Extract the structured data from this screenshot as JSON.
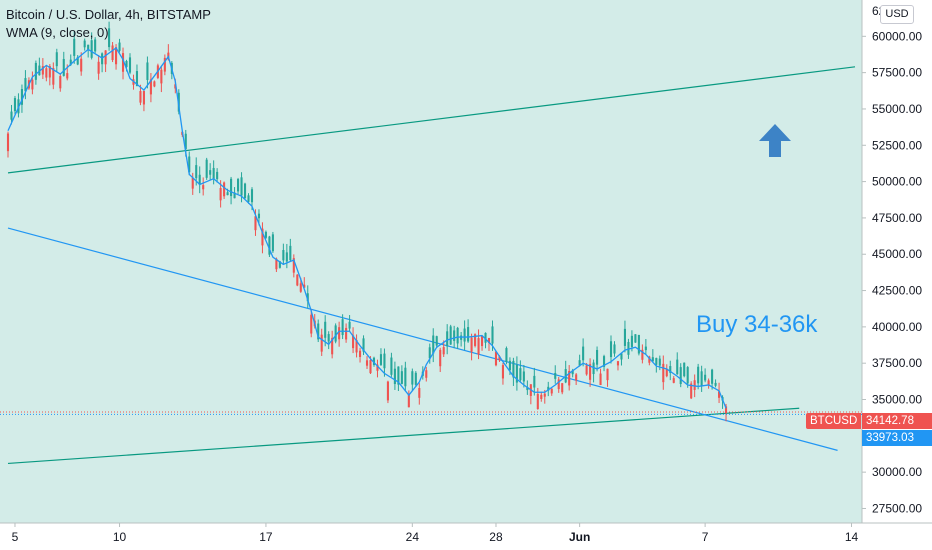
{
  "legend": {
    "symbol_line": "Bitcoin / U.S. Dollar, 4h, BITSTAMP",
    "indicator_line": "WMA (9, close, 0)"
  },
  "currency_button": "USD",
  "annotation": "Buy 34-36k",
  "price_tags": {
    "symbol": "BTCUSD",
    "last_price": "34142.78",
    "wma_value": "33973.03"
  },
  "colors": {
    "background": "#d3ece8",
    "up": "#26a69a",
    "down": "#ef5350",
    "wma": "#2196f3",
    "trendline_blue": "#2196f3",
    "channel_green": "#089981",
    "arrow": "#3d83c6"
  },
  "chart_data": {
    "type": "candlestick",
    "title": "Bitcoin / U.S. Dollar, 4h, BITSTAMP",
    "ylim": [
      26500,
      62500
    ],
    "y_ticks": [
      27500,
      30000,
      32500,
      35000,
      37500,
      40000,
      42500,
      45000,
      47500,
      50000,
      52500,
      55000,
      57500,
      60000
    ],
    "y_tick_labels": [
      "27500.00",
      "30000.00",
      "32500.00",
      "35000.00",
      "37500.00",
      "40000.00",
      "42500.00",
      "45000.00",
      "47500.00",
      "50000.00",
      "52500.00",
      "55000.00",
      "57500.00",
      "60000.00"
    ],
    "y_top_partial_label": "62",
    "x_tick_labels": [
      {
        "label": "5",
        "bar": 3
      },
      {
        "label": "10",
        "bar": 33
      },
      {
        "label": "17",
        "bar": 75
      },
      {
        "label": "24",
        "bar": 117
      },
      {
        "label": "28",
        "bar": 141
      },
      {
        "label": "Jun",
        "bar": 165
      },
      {
        "label": "7",
        "bar": 201
      },
      {
        "label": "14",
        "bar": 243
      }
    ],
    "x_range": [
      1,
      244
    ],
    "series": [
      {
        "name": "WMA (9, close, 0)",
        "kind": "line",
        "points": [
          [
            1,
            53500
          ],
          [
            4,
            55100
          ],
          [
            8,
            57200
          ],
          [
            12,
            58000
          ],
          [
            16,
            57400
          ],
          [
            20,
            58300
          ],
          [
            24,
            59100
          ],
          [
            28,
            58500
          ],
          [
            32,
            59200
          ],
          [
            34,
            58400
          ],
          [
            36,
            57100
          ],
          [
            40,
            56300
          ],
          [
            44,
            57600
          ],
          [
            47,
            58600
          ],
          [
            49,
            56900
          ],
          [
            51,
            53500
          ],
          [
            53,
            50500
          ],
          [
            56,
            49800
          ],
          [
            60,
            50200
          ],
          [
            64,
            49400
          ],
          [
            68,
            49000
          ],
          [
            71,
            48300
          ],
          [
            74,
            46500
          ],
          [
            77,
            44800
          ],
          [
            80,
            44300
          ],
          [
            83,
            44600
          ],
          [
            86,
            42600
          ],
          [
            88,
            41100
          ],
          [
            90,
            39300
          ],
          [
            93,
            38800
          ],
          [
            96,
            39700
          ],
          [
            99,
            39700
          ],
          [
            102,
            38700
          ],
          [
            105,
            37800
          ],
          [
            109,
            36800
          ],
          [
            113,
            36200
          ],
          [
            116,
            35300
          ],
          [
            119,
            36200
          ],
          [
            121,
            37400
          ],
          [
            124,
            38600
          ],
          [
            127,
            39100
          ],
          [
            130,
            39300
          ],
          [
            133,
            39300
          ],
          [
            137,
            39400
          ],
          [
            140,
            38700
          ],
          [
            143,
            37600
          ],
          [
            146,
            36600
          ],
          [
            149,
            36000
          ],
          [
            152,
            35500
          ],
          [
            155,
            35500
          ],
          [
            158,
            36000
          ],
          [
            162,
            36800
          ],
          [
            166,
            37500
          ],
          [
            170,
            37100
          ],
          [
            174,
            37600
          ],
          [
            178,
            38400
          ],
          [
            181,
            38600
          ],
          [
            184,
            38100
          ],
          [
            187,
            37300
          ],
          [
            190,
            37100
          ],
          [
            193,
            36600
          ],
          [
            196,
            36000
          ],
          [
            199,
            35900
          ],
          [
            202,
            36000
          ],
          [
            205,
            35600
          ],
          [
            207,
            34400
          ]
        ]
      }
    ],
    "lines": [
      {
        "name": "channel_upper",
        "color": "green",
        "from": [
          1,
          50600
        ],
        "to": [
          244,
          57900
        ]
      },
      {
        "name": "channel_lower",
        "color": "green",
        "from": [
          1,
          30600
        ],
        "to": [
          228,
          34400
        ]
      },
      {
        "name": "trend_down",
        "color": "blue",
        "from": [
          1,
          46800
        ],
        "to": [
          239,
          31500
        ]
      }
    ],
    "horizontal_levels": [
      34142.78,
      33973.03
    ]
  }
}
